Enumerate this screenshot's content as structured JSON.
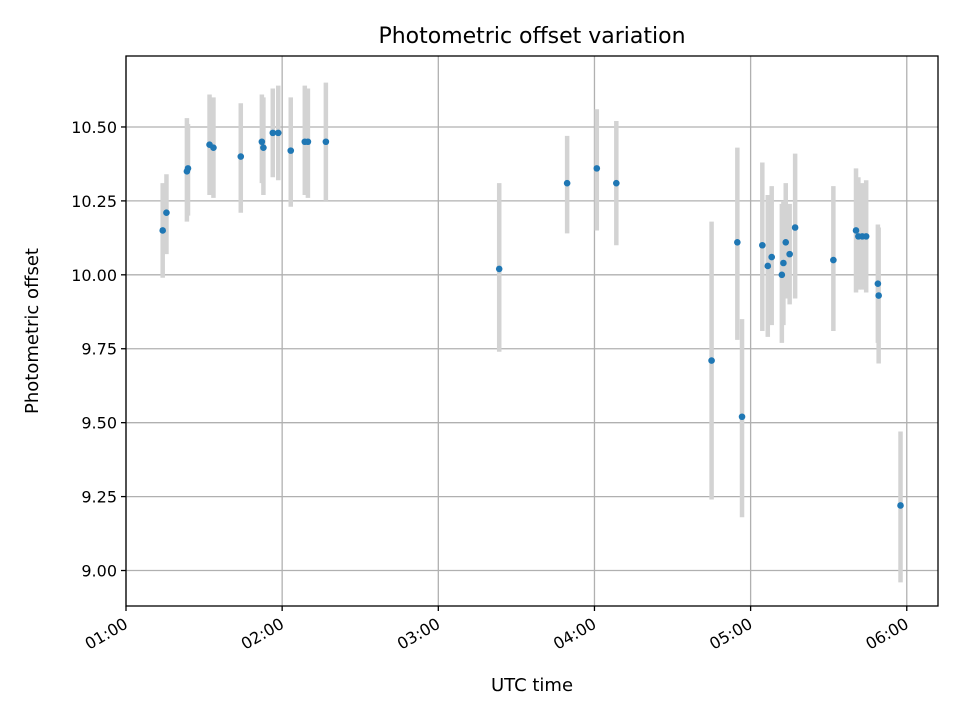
{
  "chart_data": {
    "type": "scatter",
    "title": "Photometric offset variation",
    "xlabel": "UTC time",
    "ylabel": "Photometric offset",
    "xlim": [
      1.0,
      6.2
    ],
    "ylim": [
      8.88,
      10.74
    ],
    "grid": true,
    "colors": {
      "point": "#1f77b4",
      "errorbar": "#d3d3d3"
    },
    "x_ticks": [
      {
        "value": 1.0,
        "label": "01:00"
      },
      {
        "value": 2.0,
        "label": "02:00"
      },
      {
        "value": 3.0,
        "label": "03:00"
      },
      {
        "value": 4.0,
        "label": "04:00"
      },
      {
        "value": 5.0,
        "label": "05:00"
      },
      {
        "value": 6.0,
        "label": "06:00"
      }
    ],
    "y_ticks": [
      {
        "value": 9.0,
        "label": "9.00"
      },
      {
        "value": 9.25,
        "label": "9.25"
      },
      {
        "value": 9.5,
        "label": "9.50"
      },
      {
        "value": 9.75,
        "label": "9.75"
      },
      {
        "value": 10.0,
        "label": "10.00"
      },
      {
        "value": 10.25,
        "label": "10.25"
      },
      {
        "value": 10.5,
        "label": "10.50"
      }
    ],
    "points": [
      {
        "x": 1.235,
        "y": 10.15,
        "lo": 9.99,
        "hi": 10.31
      },
      {
        "x": 1.259,
        "y": 10.21,
        "lo": 10.07,
        "hi": 10.34
      },
      {
        "x": 1.39,
        "y": 10.35,
        "lo": 10.18,
        "hi": 10.53
      },
      {
        "x": 1.397,
        "y": 10.36,
        "lo": 10.2,
        "hi": 10.51
      },
      {
        "x": 1.535,
        "y": 10.44,
        "lo": 10.27,
        "hi": 10.61
      },
      {
        "x": 1.56,
        "y": 10.43,
        "lo": 10.26,
        "hi": 10.6
      },
      {
        "x": 1.735,
        "y": 10.4,
        "lo": 10.21,
        "hi": 10.58
      },
      {
        "x": 1.87,
        "y": 10.45,
        "lo": 10.31,
        "hi": 10.61
      },
      {
        "x": 1.88,
        "y": 10.43,
        "lo": 10.27,
        "hi": 10.6
      },
      {
        "x": 1.94,
        "y": 10.48,
        "lo": 10.33,
        "hi": 10.63
      },
      {
        "x": 1.975,
        "y": 10.48,
        "lo": 10.32,
        "hi": 10.64
      },
      {
        "x": 2.055,
        "y": 10.42,
        "lo": 10.23,
        "hi": 10.6
      },
      {
        "x": 2.145,
        "y": 10.45,
        "lo": 10.27,
        "hi": 10.64
      },
      {
        "x": 2.165,
        "y": 10.45,
        "lo": 10.26,
        "hi": 10.63
      },
      {
        "x": 2.28,
        "y": 10.45,
        "lo": 10.25,
        "hi": 10.65
      },
      {
        "x": 3.39,
        "y": 10.02,
        "lo": 9.74,
        "hi": 10.31
      },
      {
        "x": 3.825,
        "y": 10.31,
        "lo": 10.14,
        "hi": 10.47
      },
      {
        "x": 4.015,
        "y": 10.36,
        "lo": 10.15,
        "hi": 10.56
      },
      {
        "x": 4.14,
        "y": 10.31,
        "lo": 10.1,
        "hi": 10.52
      },
      {
        "x": 4.75,
        "y": 9.71,
        "lo": 9.24,
        "hi": 10.18
      },
      {
        "x": 4.915,
        "y": 10.11,
        "lo": 9.78,
        "hi": 10.43
      },
      {
        "x": 4.945,
        "y": 9.52,
        "lo": 9.18,
        "hi": 9.85
      },
      {
        "x": 5.075,
        "y": 10.1,
        "lo": 9.81,
        "hi": 10.38
      },
      {
        "x": 5.11,
        "y": 10.03,
        "lo": 9.79,
        "hi": 10.27
      },
      {
        "x": 5.135,
        "y": 10.06,
        "lo": 9.83,
        "hi": 10.3
      },
      {
        "x": 5.2,
        "y": 10.0,
        "lo": 9.77,
        "hi": 10.24
      },
      {
        "x": 5.21,
        "y": 10.04,
        "lo": 9.83,
        "hi": 10.25
      },
      {
        "x": 5.225,
        "y": 10.11,
        "lo": 9.92,
        "hi": 10.31
      },
      {
        "x": 5.25,
        "y": 10.07,
        "lo": 9.9,
        "hi": 10.24
      },
      {
        "x": 5.285,
        "y": 10.16,
        "lo": 9.92,
        "hi": 10.41
      },
      {
        "x": 5.53,
        "y": 10.05,
        "lo": 9.81,
        "hi": 10.3
      },
      {
        "x": 5.675,
        "y": 10.15,
        "lo": 9.94,
        "hi": 10.36
      },
      {
        "x": 5.69,
        "y": 10.13,
        "lo": 9.95,
        "hi": 10.33
      },
      {
        "x": 5.715,
        "y": 10.13,
        "lo": 9.95,
        "hi": 10.31
      },
      {
        "x": 5.74,
        "y": 10.13,
        "lo": 9.94,
        "hi": 10.32
      },
      {
        "x": 5.815,
        "y": 9.97,
        "lo": 9.77,
        "hi": 10.17
      },
      {
        "x": 5.82,
        "y": 9.93,
        "lo": 9.7,
        "hi": 10.16
      },
      {
        "x": 5.96,
        "y": 9.22,
        "lo": 8.96,
        "hi": 9.47
      }
    ]
  }
}
